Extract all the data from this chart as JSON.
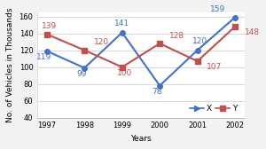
{
  "years": [
    1997,
    1998,
    1999,
    2000,
    2001,
    2002
  ],
  "x_values": [
    119,
    99,
    141,
    78,
    120,
    159
  ],
  "y_values": [
    139,
    120,
    100,
    128,
    107,
    148
  ],
  "x_color": "#4472C4",
  "y_color": "#C0504D",
  "x_label": "X",
  "y_label": "Y",
  "xlabel": "Years",
  "ylabel": "No. of Vehicles in Thousands",
  "ylim": [
    40,
    165
  ],
  "yticks": [
    40,
    60,
    80,
    100,
    120,
    140,
    160
  ],
  "linewidth": 1.5,
  "markersize": 4,
  "annotation_fontsize": 6.5,
  "axis_fontsize": 6.5,
  "tick_fontsize": 6,
  "legend_fontsize": 6.5,
  "bg_color": "#f2f2f2",
  "plot_bg": "#ffffff",
  "grid_color": "#d0d0d0"
}
